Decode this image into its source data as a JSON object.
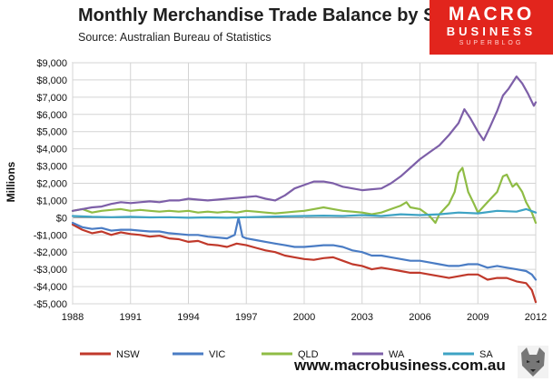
{
  "chart_data": {
    "type": "line",
    "title": "Monthly Merchandise Trade Balance by State",
    "subtitle": "Source:  Australian Bureau of Statistics",
    "ylabel": "Millions",
    "xlabel": "",
    "xlim": [
      1988,
      2012
    ],
    "ylim": [
      -5000,
      9000
    ],
    "x_ticks": [
      1988,
      1991,
      1994,
      1997,
      2000,
      2003,
      2006,
      2009,
      2012
    ],
    "y_ticks": [
      {
        "v": 9000,
        "label": "$9,000"
      },
      {
        "v": 8000,
        "label": "$8,000"
      },
      {
        "v": 7000,
        "label": "$7,000"
      },
      {
        "v": 6000,
        "label": "$6,000"
      },
      {
        "v": 5000,
        "label": "$5,000"
      },
      {
        "v": 4000,
        "label": "$4,000"
      },
      {
        "v": 3000,
        "label": "$3,000"
      },
      {
        "v": 2000,
        "label": "$2,000"
      },
      {
        "v": 1000,
        "label": "$1,000"
      },
      {
        "v": 0,
        "label": "$0"
      },
      {
        "v": -1000,
        "label": "-$1,000"
      },
      {
        "v": -2000,
        "label": "-$2,000"
      },
      {
        "v": -3000,
        "label": "-$3,000"
      },
      {
        "v": -4000,
        "label": "-$4,000"
      },
      {
        "v": -5000,
        "label": "-$5,000"
      }
    ],
    "grid": true,
    "legend_position": "bottom",
    "series": [
      {
        "name": "NSW",
        "color": "#c0392b",
        "points": [
          [
            1988.0,
            -400
          ],
          [
            1988.5,
            -700
          ],
          [
            1989.0,
            -900
          ],
          [
            1989.5,
            -800
          ],
          [
            1990.0,
            -1000
          ],
          [
            1990.5,
            -850
          ],
          [
            1991.0,
            -950
          ],
          [
            1991.5,
            -1000
          ],
          [
            1992.0,
            -1100
          ],
          [
            1992.5,
            -1050
          ],
          [
            1993.0,
            -1200
          ],
          [
            1993.5,
            -1250
          ],
          [
            1994.0,
            -1400
          ],
          [
            1994.5,
            -1350
          ],
          [
            1995.0,
            -1550
          ],
          [
            1995.5,
            -1600
          ],
          [
            1996.0,
            -1700
          ],
          [
            1996.5,
            -1500
          ],
          [
            1997.0,
            -1600
          ],
          [
            1997.5,
            -1750
          ],
          [
            1998.0,
            -1900
          ],
          [
            1998.5,
            -2000
          ],
          [
            1999.0,
            -2200
          ],
          [
            1999.5,
            -2300
          ],
          [
            2000.0,
            -2400
          ],
          [
            2000.5,
            -2450
          ],
          [
            2001.0,
            -2350
          ],
          [
            2001.5,
            -2300
          ],
          [
            2002.0,
            -2500
          ],
          [
            2002.5,
            -2700
          ],
          [
            2003.0,
            -2800
          ],
          [
            2003.5,
            -3000
          ],
          [
            2004.0,
            -2900
          ],
          [
            2004.5,
            -3000
          ],
          [
            2005.0,
            -3100
          ],
          [
            2005.5,
            -3200
          ],
          [
            2006.0,
            -3200
          ],
          [
            2006.5,
            -3300
          ],
          [
            2007.0,
            -3400
          ],
          [
            2007.5,
            -3500
          ],
          [
            2008.0,
            -3400
          ],
          [
            2008.5,
            -3300
          ],
          [
            2009.0,
            -3300
          ],
          [
            2009.5,
            -3600
          ],
          [
            2010.0,
            -3500
          ],
          [
            2010.5,
            -3500
          ],
          [
            2011.0,
            -3700
          ],
          [
            2011.5,
            -3800
          ],
          [
            2011.8,
            -4200
          ],
          [
            2012.0,
            -4900
          ]
        ]
      },
      {
        "name": "VIC",
        "color": "#4a7cc4",
        "points": [
          [
            1988.0,
            -300
          ],
          [
            1988.5,
            -550
          ],
          [
            1989.0,
            -650
          ],
          [
            1989.5,
            -600
          ],
          [
            1990.0,
            -750
          ],
          [
            1990.5,
            -700
          ],
          [
            1991.0,
            -700
          ],
          [
            1991.5,
            -750
          ],
          [
            1992.0,
            -800
          ],
          [
            1992.5,
            -800
          ],
          [
            1993.0,
            -900
          ],
          [
            1993.5,
            -950
          ],
          [
            1994.0,
            -1000
          ],
          [
            1994.5,
            -1000
          ],
          [
            1995.0,
            -1100
          ],
          [
            1995.5,
            -1150
          ],
          [
            1996.0,
            -1200
          ],
          [
            1996.4,
            -1000
          ],
          [
            1996.6,
            0
          ],
          [
            1996.8,
            -1100
          ],
          [
            1997.0,
            -1200
          ],
          [
            1997.5,
            -1300
          ],
          [
            1998.0,
            -1400
          ],
          [
            1998.5,
            -1500
          ],
          [
            1999.0,
            -1600
          ],
          [
            1999.5,
            -1700
          ],
          [
            2000.0,
            -1700
          ],
          [
            2000.5,
            -1650
          ],
          [
            2001.0,
            -1600
          ],
          [
            2001.5,
            -1600
          ],
          [
            2002.0,
            -1700
          ],
          [
            2002.5,
            -1900
          ],
          [
            2003.0,
            -2000
          ],
          [
            2003.5,
            -2200
          ],
          [
            2004.0,
            -2200
          ],
          [
            2004.5,
            -2300
          ],
          [
            2005.0,
            -2400
          ],
          [
            2005.5,
            -2500
          ],
          [
            2006.0,
            -2500
          ],
          [
            2006.5,
            -2600
          ],
          [
            2007.0,
            -2700
          ],
          [
            2007.5,
            -2800
          ],
          [
            2008.0,
            -2800
          ],
          [
            2008.5,
            -2700
          ],
          [
            2009.0,
            -2700
          ],
          [
            2009.5,
            -2900
          ],
          [
            2010.0,
            -2800
          ],
          [
            2010.5,
            -2900
          ],
          [
            2011.0,
            -3000
          ],
          [
            2011.5,
            -3100
          ],
          [
            2011.8,
            -3300
          ],
          [
            2012.0,
            -3600
          ]
        ]
      },
      {
        "name": "QLD",
        "color": "#8fbc45",
        "points": [
          [
            1988.0,
            400
          ],
          [
            1988.5,
            500
          ],
          [
            1989.0,
            300
          ],
          [
            1989.5,
            400
          ],
          [
            1990.0,
            450
          ],
          [
            1990.5,
            500
          ],
          [
            1991.0,
            400
          ],
          [
            1991.5,
            450
          ],
          [
            1992.0,
            400
          ],
          [
            1992.5,
            350
          ],
          [
            1993.0,
            400
          ],
          [
            1993.5,
            350
          ],
          [
            1994.0,
            400
          ],
          [
            1994.5,
            300
          ],
          [
            1995.0,
            350
          ],
          [
            1995.5,
            300
          ],
          [
            1996.0,
            350
          ],
          [
            1996.5,
            300
          ],
          [
            1997.0,
            400
          ],
          [
            1997.5,
            350
          ],
          [
            1998.0,
            300
          ],
          [
            1998.5,
            250
          ],
          [
            1999.0,
            300
          ],
          [
            1999.5,
            350
          ],
          [
            2000.0,
            400
          ],
          [
            2000.5,
            500
          ],
          [
            2001.0,
            600
          ],
          [
            2001.5,
            500
          ],
          [
            2002.0,
            400
          ],
          [
            2002.5,
            350
          ],
          [
            2003.0,
            300
          ],
          [
            2003.5,
            200
          ],
          [
            2004.0,
            300
          ],
          [
            2004.5,
            500
          ],
          [
            2005.0,
            700
          ],
          [
            2005.3,
            900
          ],
          [
            2005.5,
            600
          ],
          [
            2006.0,
            500
          ],
          [
            2006.5,
            100
          ],
          [
            2006.8,
            -300
          ],
          [
            2007.0,
            200
          ],
          [
            2007.5,
            800
          ],
          [
            2007.8,
            1500
          ],
          [
            2008.0,
            2600
          ],
          [
            2008.2,
            2900
          ],
          [
            2008.5,
            1500
          ],
          [
            2008.8,
            800
          ],
          [
            2009.0,
            300
          ],
          [
            2009.5,
            900
          ],
          [
            2010.0,
            1500
          ],
          [
            2010.3,
            2400
          ],
          [
            2010.5,
            2500
          ],
          [
            2010.8,
            1800
          ],
          [
            2011.0,
            2000
          ],
          [
            2011.3,
            1500
          ],
          [
            2011.5,
            900
          ],
          [
            2011.8,
            300
          ],
          [
            2012.0,
            -300
          ]
        ]
      },
      {
        "name": "WA",
        "color": "#7d5fa8",
        "points": [
          [
            1988.0,
            400
          ],
          [
            1988.5,
            500
          ],
          [
            1989.0,
            600
          ],
          [
            1989.5,
            650
          ],
          [
            1990.0,
            800
          ],
          [
            1990.5,
            900
          ],
          [
            1991.0,
            850
          ],
          [
            1991.5,
            900
          ],
          [
            1992.0,
            950
          ],
          [
            1992.5,
            900
          ],
          [
            1993.0,
            1000
          ],
          [
            1993.5,
            1000
          ],
          [
            1994.0,
            1100
          ],
          [
            1994.5,
            1050
          ],
          [
            1995.0,
            1000
          ],
          [
            1995.5,
            1050
          ],
          [
            1996.0,
            1100
          ],
          [
            1996.5,
            1150
          ],
          [
            1997.0,
            1200
          ],
          [
            1997.5,
            1250
          ],
          [
            1998.0,
            1100
          ],
          [
            1998.5,
            1000
          ],
          [
            1999.0,
            1300
          ],
          [
            1999.5,
            1700
          ],
          [
            2000.0,
            1900
          ],
          [
            2000.5,
            2100
          ],
          [
            2001.0,
            2100
          ],
          [
            2001.5,
            2000
          ],
          [
            2002.0,
            1800
          ],
          [
            2002.5,
            1700
          ],
          [
            2003.0,
            1600
          ],
          [
            2003.5,
            1650
          ],
          [
            2004.0,
            1700
          ],
          [
            2004.5,
            2000
          ],
          [
            2005.0,
            2400
          ],
          [
            2005.5,
            2900
          ],
          [
            2006.0,
            3400
          ],
          [
            2006.5,
            3800
          ],
          [
            2007.0,
            4200
          ],
          [
            2007.5,
            4800
          ],
          [
            2008.0,
            5500
          ],
          [
            2008.3,
            6300
          ],
          [
            2008.6,
            5800
          ],
          [
            2009.0,
            5000
          ],
          [
            2009.3,
            4500
          ],
          [
            2009.6,
            5200
          ],
          [
            2010.0,
            6200
          ],
          [
            2010.3,
            7100
          ],
          [
            2010.6,
            7500
          ],
          [
            2011.0,
            8200
          ],
          [
            2011.3,
            7800
          ],
          [
            2011.6,
            7200
          ],
          [
            2011.9,
            6500
          ],
          [
            2012.0,
            6700
          ]
        ]
      },
      {
        "name": "SA",
        "color": "#3ea3c4",
        "points": [
          [
            1988.0,
            100
          ],
          [
            1989.0,
            50
          ],
          [
            1990.0,
            30
          ],
          [
            1991.0,
            50
          ],
          [
            1992.0,
            20
          ],
          [
            1993.0,
            30
          ],
          [
            1994.0,
            0
          ],
          [
            1995.0,
            20
          ],
          [
            1996.0,
            0
          ],
          [
            1997.0,
            30
          ],
          [
            1998.0,
            50
          ],
          [
            1999.0,
            80
          ],
          [
            2000.0,
            100
          ],
          [
            2001.0,
            120
          ],
          [
            2002.0,
            100
          ],
          [
            2003.0,
            150
          ],
          [
            2004.0,
            100
          ],
          [
            2005.0,
            200
          ],
          [
            2006.0,
            150
          ],
          [
            2007.0,
            200
          ],
          [
            2008.0,
            300
          ],
          [
            2009.0,
            250
          ],
          [
            2010.0,
            400
          ],
          [
            2011.0,
            350
          ],
          [
            2011.5,
            500
          ],
          [
            2012.0,
            300
          ]
        ]
      }
    ]
  },
  "logo": {
    "line1": "MACRO",
    "line2": "BUSINESS",
    "line3": "SUPERBLOG"
  },
  "footer": {
    "url": "www.macrobusiness.com.au"
  }
}
